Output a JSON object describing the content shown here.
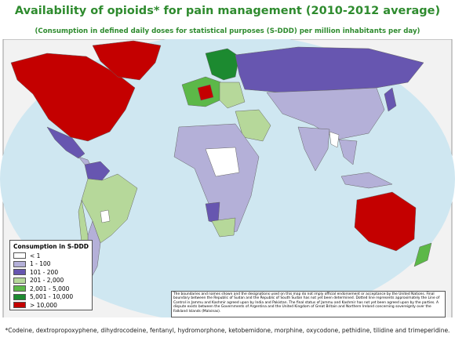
{
  "header": {
    "title": "Availability of opioids* for pain management (2010-2012 average)",
    "subtitle": "(Consumption in defined daily doses for statistical purposes (S-DDD) per million inhabitants per day)"
  },
  "legend": {
    "title": "Consumption in S-DDD",
    "items": [
      {
        "label": "< 1",
        "color": "#ffffff"
      },
      {
        "label": "1 - 100",
        "color": "#b4b0d8"
      },
      {
        "label": "101 - 200",
        "color": "#6756b0"
      },
      {
        "label": "201 - 2,000",
        "color": "#b6d89a"
      },
      {
        "label": "2,001 - 5,000",
        "color": "#5cb848"
      },
      {
        "label": "5,001 - 10,000",
        "color": "#1c8a30"
      },
      {
        "label": "> 10,000",
        "color": "#c40000"
      }
    ]
  },
  "disclaimer": "The boundaries and names shown and the designations used on this map do not imply official endorsement or acceptance by the United Nations. Final boundary between the Republic of Sudan and the Republic of South Sudan has not yet been determined. Dotted line represents approximately the Line of Control in Jammu and Kashmir agreed upon by India and Pakistan. The final status of Jammu and Kashmir has not yet been agreed upon by the parties. A dispute exists between the Governments of Argentina and the United Kingdom of Great Britain and Northern Ireland concerning sovereignty over the Falkland Islands (Malvinas).",
  "footnote": "*Codeine, dextropropoxyphene, dihydrocodeine, fentanyl, hydromorphone, ketobemidone, morphine, oxycodone, pethidine, tilidine and trimeperidine."
}
